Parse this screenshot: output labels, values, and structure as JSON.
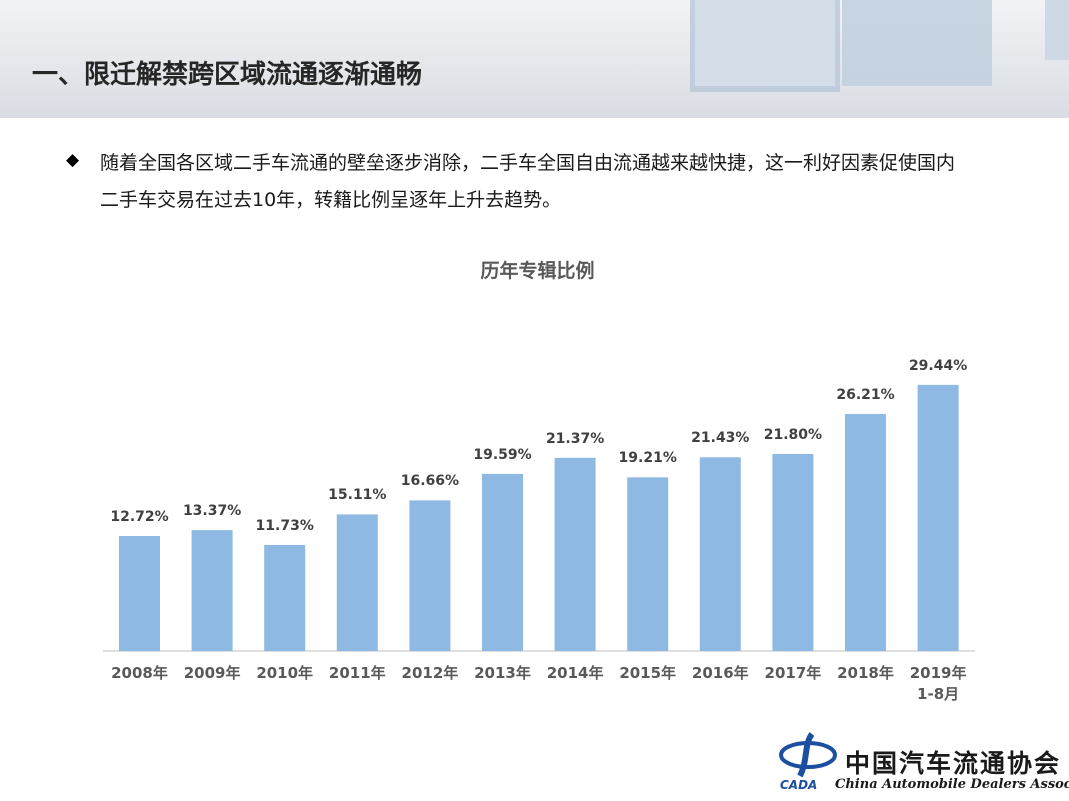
{
  "header": {
    "title": "一、限迁解禁跨区域流通逐渐通畅"
  },
  "bullet": {
    "lines": [
      "随着全国各区域二手车流通的壁垒逐步消除，二手车全国自由流通越来越快捷，这一利好因素促使国内",
      "二手车交易在过去10年，转籍比例呈逐年上升去趋势。"
    ]
  },
  "chart_data": {
    "type": "bar",
    "title": "历年专辑比例",
    "categories": [
      "2008年",
      "2009年",
      "2010年",
      "2011年",
      "2012年",
      "2013年",
      "2014年",
      "2015年",
      "2016年",
      "2017年",
      "2018年",
      "2019年\n1-8月"
    ],
    "values": [
      12.72,
      13.37,
      11.73,
      15.11,
      16.66,
      19.59,
      21.37,
      19.21,
      21.43,
      21.8,
      26.21,
      29.44
    ],
    "value_labels": [
      "12.72%",
      "13.37%",
      "11.73%",
      "15.11%",
      "16.66%",
      "19.59%",
      "21.37%",
      "19.21%",
      "21.43%",
      "21.80%",
      "26.21%",
      "29.44%"
    ],
    "color": "#8db9e2"
  },
  "logo": {
    "name": "中国汽车流通协会",
    "english": "China Automobile Dealers Association",
    "mark": "CADA"
  }
}
